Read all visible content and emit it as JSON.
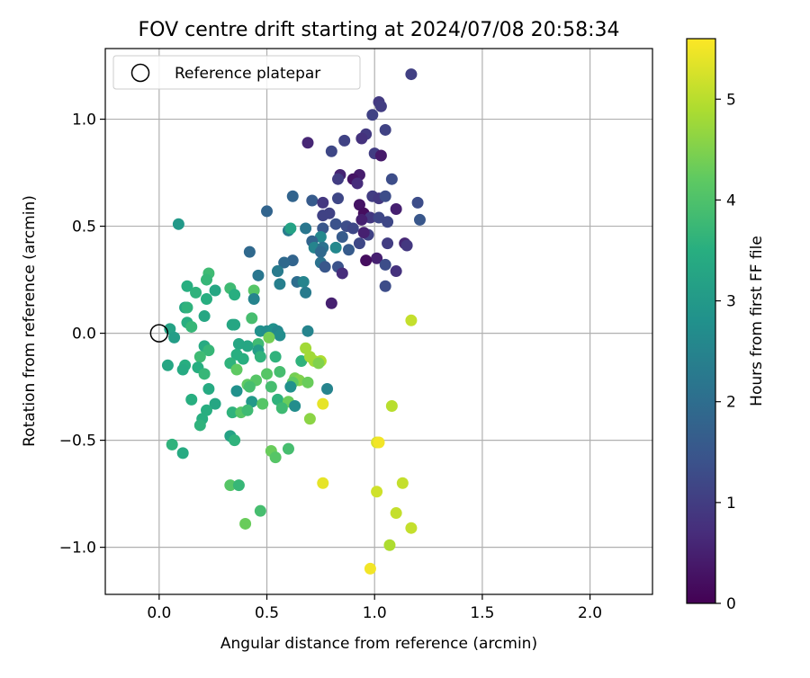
{
  "chart_data": {
    "type": "scatter",
    "title": "FOV centre drift starting at 2024/07/08 20:58:34",
    "xlabel": "Angular distance from reference (arcmin)",
    "ylabel": "Rotation from reference (arcmin)",
    "xlim": [
      -0.25,
      2.29
    ],
    "ylim": [
      -1.22,
      1.33
    ],
    "xticks": [
      0.0,
      0.5,
      1.0,
      1.5,
      2.0
    ],
    "xtick_labels": [
      "0.0",
      "0.5",
      "1.0",
      "1.5",
      "2.0"
    ],
    "yticks": [
      -1.0,
      -0.5,
      0.0,
      0.5,
      1.0
    ],
    "ytick_labels": [
      "−1.0",
      "−0.5",
      "0.0",
      "0.5",
      "1.0"
    ],
    "grid": true,
    "legend": {
      "placement": "upper-left",
      "entries": [
        "Reference platepar"
      ]
    },
    "reference_point": {
      "x": 0.0,
      "y": 0.0
    },
    "colorbar": {
      "label": "Hours from first FF file",
      "colormap": "viridis",
      "min": 0,
      "max": 5.6,
      "ticks": [
        0,
        1,
        2,
        3,
        4,
        5
      ],
      "tick_labels": [
        "0",
        "1",
        "2",
        "3",
        "4",
        "5"
      ]
    },
    "points": [
      [
        1.17,
        1.21,
        1.05
      ],
      [
        1.02,
        1.08,
        0.95
      ],
      [
        1.03,
        1.06,
        1.0
      ],
      [
        0.99,
        1.02,
        1.1
      ],
      [
        0.69,
        0.89,
        0.6
      ],
      [
        0.96,
        0.93,
        0.95
      ],
      [
        0.94,
        0.91,
        0.8
      ],
      [
        1.05,
        0.95,
        1.1
      ],
      [
        0.8,
        0.85,
        1.2
      ],
      [
        0.86,
        0.9,
        1.1
      ],
      [
        1.0,
        0.84,
        1.0
      ],
      [
        1.03,
        0.83,
        0.4
      ],
      [
        0.84,
        0.74,
        0.55
      ],
      [
        0.93,
        0.74,
        0.45
      ],
      [
        0.9,
        0.72,
        0.3
      ],
      [
        0.92,
        0.7,
        0.7
      ],
      [
        1.08,
        0.72,
        1.3
      ],
      [
        0.83,
        0.72,
        1.0
      ],
      [
        0.62,
        0.64,
        1.8
      ],
      [
        0.71,
        0.62,
        1.6
      ],
      [
        0.76,
        0.61,
        0.9
      ],
      [
        0.83,
        0.63,
        1.2
      ],
      [
        0.99,
        0.64,
        1.0
      ],
      [
        1.02,
        0.63,
        0.9
      ],
      [
        1.05,
        0.64,
        1.3
      ],
      [
        1.2,
        0.61,
        1.3
      ],
      [
        0.93,
        0.6,
        0.3
      ],
      [
        1.1,
        0.58,
        0.5
      ],
      [
        0.95,
        0.56,
        0.2
      ],
      [
        0.79,
        0.56,
        1.1
      ],
      [
        0.76,
        0.55,
        1.1
      ],
      [
        0.5,
        0.57,
        1.8
      ],
      [
        0.98,
        0.54,
        0.9
      ],
      [
        1.02,
        0.54,
        1.2
      ],
      [
        1.06,
        0.52,
        1.2
      ],
      [
        1.21,
        0.53,
        1.5
      ],
      [
        0.94,
        0.53,
        0.5
      ],
      [
        0.82,
        0.51,
        1.4
      ],
      [
        0.87,
        0.5,
        1.3
      ],
      [
        0.9,
        0.49,
        1.2
      ],
      [
        0.76,
        0.49,
        1.5
      ],
      [
        0.68,
        0.49,
        2.2
      ],
      [
        0.6,
        0.48,
        2.3
      ],
      [
        0.61,
        0.49,
        3.2
      ],
      [
        0.97,
        0.46,
        1.1
      ],
      [
        0.95,
        0.47,
        0.5
      ],
      [
        0.85,
        0.45,
        1.6
      ],
      [
        0.75,
        0.45,
        2.6
      ],
      [
        0.71,
        0.43,
        1.8
      ],
      [
        0.93,
        0.42,
        1.2
      ],
      [
        1.06,
        0.42,
        1.0
      ],
      [
        1.14,
        0.42,
        0.6
      ],
      [
        1.15,
        0.41,
        0.9
      ],
      [
        0.72,
        0.4,
        2.5
      ],
      [
        0.76,
        0.4,
        2.1
      ],
      [
        0.82,
        0.4,
        2.6
      ],
      [
        0.88,
        0.39,
        1.6
      ],
      [
        0.42,
        0.38,
        1.9
      ],
      [
        0.75,
        0.38,
        1.9
      ],
      [
        0.62,
        0.34,
        1.8
      ],
      [
        0.58,
        0.33,
        1.9
      ],
      [
        0.75,
        0.33,
        2.1
      ],
      [
        1.01,
        0.35,
        0.5
      ],
      [
        0.96,
        0.34,
        0.2
      ],
      [
        1.05,
        0.32,
        1.3
      ],
      [
        0.83,
        0.31,
        1.4
      ],
      [
        0.77,
        0.31,
        1.5
      ],
      [
        0.55,
        0.29,
        2.3
      ],
      [
        0.55,
        0.29,
        2.3
      ],
      [
        0.46,
        0.27,
        2.2
      ],
      [
        0.85,
        0.28,
        0.7
      ],
      [
        1.1,
        0.29,
        0.8
      ],
      [
        0.64,
        0.24,
        2.0
      ],
      [
        0.67,
        0.24,
        2.5
      ],
      [
        0.56,
        0.23,
        2.4
      ],
      [
        0.68,
        0.19,
        2.3
      ],
      [
        1.05,
        0.22,
        1.3
      ],
      [
        0.8,
        0.14,
        0.5
      ],
      [
        0.09,
        0.51,
        3.0
      ],
      [
        0.23,
        0.28,
        3.8
      ],
      [
        0.22,
        0.25,
        3.7
      ],
      [
        0.13,
        0.22,
        3.5
      ],
      [
        0.17,
        0.19,
        3.6
      ],
      [
        0.26,
        0.2,
        3.3
      ],
      [
        0.33,
        0.21,
        3.8
      ],
      [
        0.35,
        0.18,
        3.5
      ],
      [
        0.44,
        0.2,
        4.1
      ],
      [
        0.22,
        0.16,
        3.5
      ],
      [
        0.12,
        0.12,
        3.3
      ],
      [
        0.13,
        0.12,
        3.6
      ],
      [
        0.44,
        0.16,
        2.5
      ],
      [
        0.21,
        0.08,
        3.3
      ],
      [
        0.13,
        0.05,
        3.5
      ],
      [
        0.34,
        0.04,
        3.3
      ],
      [
        0.35,
        0.04,
        3.3
      ],
      [
        0.43,
        0.07,
        3.9
      ],
      [
        0.05,
        0.02,
        3.2
      ],
      [
        0.15,
        0.03,
        3.7
      ],
      [
        0.47,
        0.01,
        2.8
      ],
      [
        0.5,
        0.01,
        2.7
      ],
      [
        0.53,
        0.02,
        2.8
      ],
      [
        0.55,
        0.01,
        2.6
      ],
      [
        0.56,
        -0.01,
        2.7
      ],
      [
        0.69,
        0.01,
        2.5
      ],
      [
        0.07,
        -0.02,
        3.1
      ],
      [
        0.51,
        -0.02,
        4.4
      ],
      [
        0.46,
        -0.05,
        3.8
      ],
      [
        0.37,
        -0.05,
        3.3
      ],
      [
        0.41,
        -0.06,
        3.3
      ],
      [
        0.21,
        -0.06,
        3.4
      ],
      [
        0.46,
        -0.08,
        3.1
      ],
      [
        0.23,
        -0.08,
        3.7
      ],
      [
        0.68,
        -0.07,
        4.8
      ],
      [
        0.19,
        -0.11,
        3.8
      ],
      [
        0.36,
        -0.1,
        3.5
      ],
      [
        0.47,
        -0.11,
        3.6
      ],
      [
        0.54,
        -0.11,
        3.6
      ],
      [
        0.66,
        -0.13,
        3.6
      ],
      [
        0.7,
        -0.11,
        4.8
      ],
      [
        0.72,
        -0.13,
        4.8
      ],
      [
        0.75,
        -0.13,
        4.9
      ],
      [
        0.74,
        -0.14,
        4.5
      ],
      [
        0.33,
        -0.14,
        3.6
      ],
      [
        0.39,
        -0.12,
        3.5
      ],
      [
        0.04,
        -0.15,
        3.3
      ],
      [
        0.12,
        -0.15,
        3.5
      ],
      [
        0.18,
        -0.16,
        3.5
      ],
      [
        0.11,
        -0.17,
        3.4
      ],
      [
        0.36,
        -0.17,
        4.2
      ],
      [
        0.21,
        -0.19,
        3.7
      ],
      [
        0.5,
        -0.19,
        4.1
      ],
      [
        0.56,
        -0.18,
        3.9
      ],
      [
        0.45,
        -0.22,
        4.1
      ],
      [
        0.63,
        -0.21,
        4.4
      ],
      [
        0.65,
        -0.22,
        4.5
      ],
      [
        0.69,
        -0.23,
        4.3
      ],
      [
        0.62,
        -0.23,
        4.2
      ],
      [
        0.41,
        -0.24,
        4.2
      ],
      [
        0.42,
        -0.25,
        3.9
      ],
      [
        0.52,
        -0.25,
        3.9
      ],
      [
        0.78,
        -0.26,
        2.5
      ],
      [
        0.61,
        -0.25,
        2.8
      ],
      [
        0.23,
        -0.26,
        3.4
      ],
      [
        0.36,
        -0.27,
        2.8
      ],
      [
        0.15,
        -0.31,
        3.5
      ],
      [
        0.26,
        -0.33,
        3.3
      ],
      [
        0.55,
        -0.31,
        3.6
      ],
      [
        0.6,
        -0.32,
        4.3
      ],
      [
        0.63,
        -0.34,
        2.7
      ],
      [
        0.43,
        -0.32,
        3.0
      ],
      [
        0.48,
        -0.33,
        4.1
      ],
      [
        0.57,
        -0.35,
        3.8
      ],
      [
        0.34,
        -0.37,
        3.6
      ],
      [
        0.38,
        -0.37,
        4.1
      ],
      [
        0.41,
        -0.36,
        3.8
      ],
      [
        0.76,
        -0.33,
        5.4
      ],
      [
        1.08,
        -0.34,
        5.0
      ],
      [
        0.22,
        -0.36,
        3.5
      ],
      [
        0.2,
        -0.4,
        3.5
      ],
      [
        0.7,
        -0.4,
        4.6
      ],
      [
        0.19,
        -0.43,
        3.6
      ],
      [
        0.33,
        -0.48,
        3.2
      ],
      [
        0.35,
        -0.5,
        3.6
      ],
      [
        0.06,
        -0.52,
        3.6
      ],
      [
        1.01,
        -0.51,
        5.3
      ],
      [
        1.02,
        -0.51,
        5.5
      ],
      [
        0.52,
        -0.55,
        4.3
      ],
      [
        0.11,
        -0.56,
        3.4
      ],
      [
        0.54,
        -0.58,
        4.1
      ],
      [
        0.6,
        -0.54,
        3.9
      ],
      [
        0.33,
        -0.71,
        4.1
      ],
      [
        0.37,
        -0.71,
        3.7
      ],
      [
        0.76,
        -0.7,
        5.4
      ],
      [
        1.01,
        -0.74,
        5.2
      ],
      [
        1.13,
        -0.7,
        5.1
      ],
      [
        0.47,
        -0.83,
        3.9
      ],
      [
        1.1,
        -0.84,
        5.1
      ],
      [
        0.4,
        -0.89,
        4.3
      ],
      [
        1.07,
        -0.99,
        4.9
      ],
      [
        1.17,
        -0.91,
        5.1
      ],
      [
        0.98,
        -1.1,
        5.5
      ],
      [
        1.17,
        0.06,
        5.1
      ]
    ]
  }
}
